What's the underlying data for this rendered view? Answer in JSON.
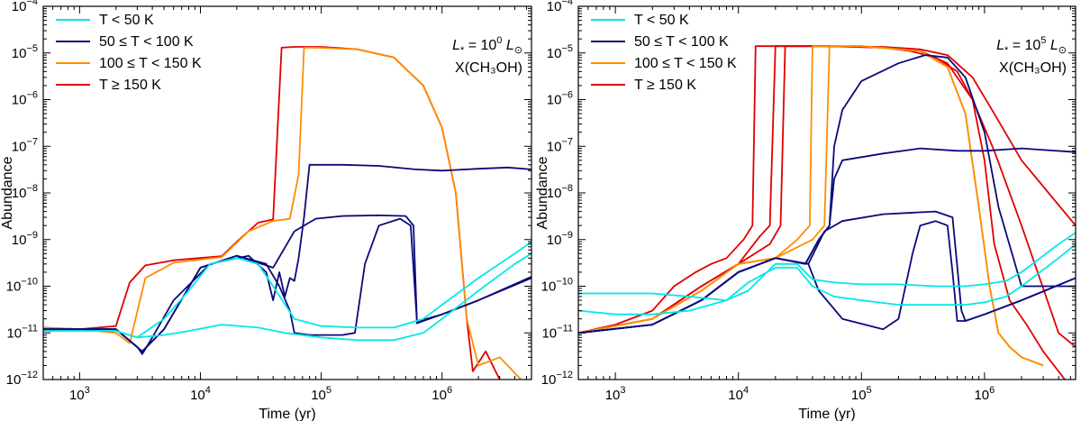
{
  "chart_data": [
    {
      "type": "line",
      "panel": "left",
      "xscale": "log",
      "yscale": "log",
      "xlim": [
        500,
        5500000
      ],
      "ylim": [
        1e-12,
        0.0001
      ],
      "xlabel": "Time (yr)",
      "ylabel": "Abundance",
      "xtick_labels": {
        "base": "10",
        "exps": [
          "3",
          "4",
          "5",
          "6"
        ]
      },
      "ytick_labels": {
        "base": "10",
        "exps": [
          "−12",
          "−11",
          "−10",
          "−9",
          "−8",
          "−7",
          "−6",
          "−5",
          "−4"
        ]
      },
      "annotation": {
        "lstar_lhs": "L",
        "lstar_sub": "*",
        "lstar_eq": " = 10",
        "lstar_exp": "0",
        "lstar_unit": "L",
        "lstar_unit_sub": "⊙",
        "species": "X(CH₃OH)"
      },
      "legend": {
        "location": "upper-left",
        "entries": [
          {
            "label": "T < 50 K",
            "color": "#00e8e8"
          },
          {
            "label": "50 ≤ T < 100 K",
            "color": "#0a0a7a"
          },
          {
            "label": "100 ≤ T < 150 K",
            "color": "#ff8c00"
          },
          {
            "label": "T ≥ 150 K",
            "color": "#e00000"
          }
        ]
      },
      "series": [
        {
          "name": "T ≥ 150 K",
          "color": "#e00000",
          "x": [
            500,
            1000,
            2000,
            2600,
            3500,
            6000,
            15000,
            20000,
            30000,
            40000,
            47000,
            60000,
            100000,
            200000,
            400000,
            700000,
            1000000,
            1300000,
            1600000,
            1800000,
            2300000,
            3000000
          ],
          "y": [
            1.3e-11,
            1.2e-11,
            1.4e-11,
            1.2e-10,
            2.8e-10,
            3.6e-10,
            4.4e-10,
            9e-10,
            2.3e-09,
            2.7e-09,
            1.3e-05,
            1.35e-05,
            1.35e-05,
            1.2e-05,
            8e-06,
            2e-06,
            2.5e-07,
            1e-08,
            2e-11,
            1.5e-12,
            4e-12,
            1e-12
          ]
        },
        {
          "name": "100 ≤ T < 150 K",
          "color": "#ff8c00",
          "x": [
            500,
            1000,
            2000,
            2600,
            3500,
            6000,
            15000,
            25000,
            40000,
            55000,
            65000,
            72000,
            90000,
            200000,
            400000,
            700000,
            1000000,
            1300000,
            1600000,
            2000000,
            3000000,
            4500000
          ],
          "y": [
            1.3e-11,
            1.2e-11,
            1e-11,
            6e-12,
            1.5e-10,
            3.2e-10,
            4.2e-10,
            1.5e-09,
            2.5e-09,
            2.8e-09,
            2.5e-08,
            1.3e-05,
            1.3e-05,
            1.2e-05,
            8e-06,
            2e-06,
            2.5e-07,
            1e-08,
            2e-11,
            2e-12,
            3e-12,
            1e-12
          ]
        },
        {
          "name": "50 ≤ T < 100 K",
          "color": "#0a0a7a",
          "x": [
            500,
            2000,
            3000,
            3300,
            4000,
            6000,
            12000,
            25000,
            35000,
            40000,
            45000,
            50000,
            55000,
            60000,
            65000,
            72000,
            80000,
            150000,
            300000,
            600000,
            1000000,
            2000000,
            3500000,
            5500000
          ],
          "y": [
            1.2e-11,
            1.2e-11,
            5e-12,
            3.5e-12,
            8e-12,
            5e-11,
            3e-10,
            4.5e-10,
            2e-10,
            5e-11,
            2e-10,
            6e-11,
            1.5e-10,
            1.3e-10,
            4e-10,
            3e-09,
            4e-08,
            4e-08,
            3.8e-08,
            3.2e-08,
            3e-08,
            3.3e-08,
            3.5e-08,
            3.2e-08
          ]
        },
        {
          "name": "50 ≤ T < 100 K",
          "color": "#0a0a7a",
          "x": [
            500,
            2000,
            3300,
            5000,
            10000,
            20000,
            40000,
            60000,
            90000,
            150000,
            300000,
            500000,
            580000,
            620000,
            700000,
            1000000,
            2000000,
            5500000
          ],
          "y": [
            1.2e-11,
            1.2e-11,
            4e-12,
            1.2e-11,
            2.5e-10,
            4.5e-10,
            2.5e-10,
            1.5e-09,
            2.8e-09,
            3.2e-09,
            3.3e-09,
            3.2e-09,
            2e-09,
            1.6e-11,
            1.8e-11,
            2.5e-11,
            5e-11,
            1.5e-10
          ]
        },
        {
          "name": "50 ≤ T < 100 K",
          "color": "#0a0a7a",
          "x": [
            500,
            2000,
            3300,
            5000,
            10000,
            20000,
            35000,
            45000,
            55000,
            60000,
            80000,
            150000,
            190000,
            230000,
            300000,
            450000,
            550000,
            620000,
            700000,
            1000000,
            2000000,
            5500000
          ],
          "y": [
            1.2e-11,
            1.2e-11,
            4e-12,
            1.2e-11,
            2.5e-10,
            4.5e-10,
            3e-10,
            1e-10,
            3e-11,
            1e-11,
            9e-12,
            9e-12,
            1e-11,
            3e-10,
            2e-09,
            2.8e-09,
            2e-09,
            1.7e-11,
            1.9e-11,
            2.5e-11,
            5e-11,
            1.6e-10
          ]
        },
        {
          "name": "T < 50 K",
          "color": "#00e8e8",
          "x": [
            500,
            2000,
            3000,
            5000,
            8000,
            15000,
            30000,
            50000,
            100000,
            200000,
            400000,
            700000,
            1000000,
            2000000,
            4000000,
            5500000
          ],
          "y": [
            1.1e-11,
            1.1e-11,
            8e-12,
            9e-12,
            1.1e-11,
            1.5e-11,
            1.3e-11,
            1e-11,
            8e-12,
            7e-12,
            7e-12,
            1e-11,
            2e-11,
            8e-11,
            3e-10,
            5e-10
          ]
        },
        {
          "name": "T < 50 K",
          "color": "#00e8e8",
          "x": [
            500,
            2000,
            3000,
            5000,
            8000,
            12000,
            20000,
            30000,
            40000,
            60000,
            100000,
            200000,
            400000,
            700000,
            1000000,
            2000000,
            4000000,
            5500000
          ],
          "y": [
            1.1e-11,
            1.1e-11,
            8e-12,
            2e-11,
            8e-11,
            3e-10,
            4e-10,
            3e-10,
            1e-10,
            2e-11,
            1.4e-11,
            1.3e-11,
            1.3e-11,
            2e-11,
            4e-11,
            1.5e-10,
            5e-10,
            9e-10
          ]
        }
      ]
    },
    {
      "type": "line",
      "panel": "right",
      "xscale": "log",
      "yscale": "log",
      "xlim": [
        500,
        5500000
      ],
      "ylim": [
        1e-12,
        0.0001
      ],
      "xlabel": "Time (yr)",
      "ylabel": "Abundance",
      "xtick_labels": {
        "base": "10",
        "exps": [
          "3",
          "4",
          "5",
          "6"
        ]
      },
      "ytick_labels": {
        "base": "10",
        "exps": [
          "−12",
          "−11",
          "−10",
          "−9",
          "−8",
          "−7",
          "−6",
          "−5",
          "−4"
        ]
      },
      "annotation": {
        "lstar_lhs": "L",
        "lstar_sub": "*",
        "lstar_eq": " = 10",
        "lstar_exp": "5",
        "lstar_unit": "L",
        "lstar_unit_sub": "⊙",
        "species": "X(CH₃OH)"
      },
      "legend": {
        "location": "upper-left",
        "entries": [
          {
            "label": "T < 50 K",
            "color": "#00e8e8"
          },
          {
            "label": "50 ≤ T < 100 K",
            "color": "#0a0a7a"
          },
          {
            "label": "100 ≤ T < 150 K",
            "color": "#ff8c00"
          },
          {
            "label": "T ≥ 150 K",
            "color": "#e00000"
          }
        ]
      },
      "series": [
        {
          "name": "T ≥ 150 K",
          "color": "#e00000",
          "x": [
            500,
            1000,
            2000,
            3000,
            4500,
            6000,
            8000,
            11000,
            13000,
            13800,
            20000,
            60000,
            150000,
            250000,
            400000,
            600000,
            800000,
            1000000,
            1200000,
            1600000,
            2200000,
            3000000,
            4500000
          ],
          "y": [
            1e-11,
            1.5e-11,
            3e-11,
            1e-10,
            2e-10,
            3e-10,
            4e-10,
            1e-09,
            2e-09,
            1.4e-05,
            1.4e-05,
            1.4e-05,
            1.3e-05,
            1.1e-05,
            8e-06,
            4e-06,
            1e-06,
            5e-08,
            8e-10,
            5e-11,
            1.5e-11,
            4e-12,
            1e-12
          ]
        },
        {
          "name": "T ≥ 150 K",
          "color": "#e00000",
          "x": [
            500,
            2000,
            5000,
            10000,
            15000,
            18000,
            20000,
            50000,
            150000,
            300000,
            500000,
            800000,
            1200000,
            2000000,
            5500000
          ],
          "y": [
            1e-11,
            2e-11,
            1e-10,
            3e-10,
            1.2e-09,
            2e-09,
            1.4e-05,
            1.4e-05,
            1.35e-05,
            1.2e-05,
            9e-06,
            3e-06,
            5e-07,
            5e-08,
            2e-09
          ]
        },
        {
          "name": "T ≥ 150 K",
          "color": "#e00000",
          "x": [
            500,
            2000,
            5000,
            10000,
            18000,
            22000,
            24000,
            50000,
            150000,
            300000,
            500000,
            800000,
            1200000,
            2000000,
            4000000,
            5500000
          ],
          "y": [
            1e-11,
            2e-11,
            1e-10,
            3e-10,
            8e-10,
            2e-09,
            1.4e-05,
            1.4e-05,
            1.3e-05,
            1.1e-05,
            6e-06,
            1e-06,
            8e-08,
            2e-09,
            1e-11,
            5e-12
          ]
        },
        {
          "name": "100 ≤ T < 150 K",
          "color": "#ff8c00",
          "x": [
            500,
            2000,
            5000,
            10000,
            20000,
            30000,
            38000,
            40000,
            100000,
            300000,
            500000,
            700000,
            900000,
            1100000,
            1300000,
            1600000,
            2000000,
            3000000
          ],
          "y": [
            1e-11,
            2e-11,
            8e-11,
            3e-10,
            4e-10,
            1e-09,
            2e-09,
            1.4e-05,
            1.4e-05,
            1.1e-05,
            5e-06,
            5e-07,
            5e-09,
            1e-10,
            1e-11,
            5e-12,
            3e-12,
            2e-12
          ]
        },
        {
          "name": "100 ≤ T < 150 K",
          "color": "#ff8c00",
          "x": [
            500,
            2000,
            5000,
            10000,
            20000,
            40000,
            50000,
            55000,
            100000,
            300000,
            500000,
            700000,
            900000,
            1100000,
            1300000,
            1600000,
            2000000,
            3000000
          ],
          "y": [
            1e-11,
            2e-11,
            8e-11,
            3e-10,
            4e-10,
            1e-09,
            2e-09,
            1.4e-05,
            1.4e-05,
            1.1e-05,
            5e-06,
            5e-07,
            5e-09,
            1e-10,
            1e-11,
            5e-12,
            3e-12,
            2e-12
          ]
        },
        {
          "name": "50 ≤ T < 100 K",
          "color": "#0a0a7a",
          "x": [
            500,
            2000,
            5000,
            10000,
            20000,
            35000,
            45000,
            55000,
            60000,
            70000,
            100000,
            200000,
            330000,
            500000,
            700000,
            1000000,
            1300000,
            2000000,
            5500000
          ],
          "y": [
            1e-11,
            1.5e-11,
            5e-11,
            2e-10,
            4e-10,
            3e-10,
            1e-09,
            2e-09,
            1e-07,
            6e-07,
            2.5e-06,
            6e-06,
            9e-06,
            8e-06,
            3e-06,
            2e-07,
            5e-09,
            1e-10,
            1e-10
          ]
        },
        {
          "name": "50 ≤ T < 100 K",
          "color": "#0a0a7a",
          "x": [
            500,
            2000,
            5000,
            10000,
            20000,
            35000,
            45000,
            55000,
            60000,
            70000,
            150000,
            300000,
            600000,
            1000000,
            2000000,
            5500000
          ],
          "y": [
            1e-11,
            1.5e-11,
            5e-11,
            2e-10,
            4e-10,
            3e-10,
            1e-09,
            2e-09,
            2e-08,
            5e-08,
            7e-08,
            9e-08,
            8e-08,
            8e-08,
            9e-08,
            7.5e-08
          ]
        },
        {
          "name": "50 ≤ T < 100 K",
          "color": "#0a0a7a",
          "x": [
            500,
            2000,
            5000,
            10000,
            20000,
            37000,
            50000,
            70000,
            150000,
            400000,
            550000,
            650000,
            700000,
            1000000,
            2000000,
            5500000
          ],
          "y": [
            1e-11,
            1.5e-11,
            5e-11,
            2e-10,
            4e-10,
            3e-10,
            1.5e-09,
            2.5e-09,
            3.5e-09,
            4e-09,
            3e-09,
            3e-11,
            1.8e-11,
            2.5e-11,
            5e-11,
            1.5e-10
          ]
        },
        {
          "name": "50 ≤ T < 100 K",
          "color": "#0a0a7a",
          "x": [
            500,
            2000,
            5000,
            10000,
            20000,
            37000,
            45000,
            70000,
            150000,
            200000,
            260000,
            300000,
            400000,
            500000,
            550000,
            600000,
            700000,
            1000000,
            2000000,
            5500000
          ],
          "y": [
            1e-11,
            1.5e-11,
            5e-11,
            2e-10,
            4e-10,
            3e-10,
            8e-11,
            2e-11,
            1.2e-11,
            2e-11,
            5e-10,
            2e-09,
            2.5e-09,
            2e-09,
            2e-10,
            1.8e-11,
            1.8e-11,
            2.5e-11,
            5e-11,
            1.5e-10
          ]
        },
        {
          "name": "T < 50 K",
          "color": "#00e8e8",
          "x": [
            500,
            1000,
            2000,
            4000,
            8000,
            12000,
            20000,
            30000,
            40000,
            60000,
            100000,
            200000,
            400000,
            700000,
            1000000,
            1500000,
            2000000,
            4000000,
            5500000
          ],
          "y": [
            7e-11,
            7e-11,
            7e-11,
            6e-11,
            5e-11,
            8e-11,
            3e-10,
            3e-10,
            1.4e-10,
            1.2e-10,
            1.1e-10,
            1.1e-10,
            1e-10,
            1e-10,
            1.1e-10,
            1.3e-10,
            2e-10,
            8e-10,
            1.4e-09
          ]
        },
        {
          "name": "T < 50 K",
          "color": "#00e8e8",
          "x": [
            500,
            1000,
            2000,
            4000,
            8000,
            12000,
            20000,
            30000,
            40000,
            60000,
            100000,
            200000,
            400000,
            700000,
            1000000,
            1500000,
            2000000,
            4000000,
            5500000
          ],
          "y": [
            3e-11,
            2.5e-11,
            2.5e-11,
            3e-11,
            5e-11,
            1.2e-10,
            2.5e-10,
            2.5e-10,
            1e-10,
            6e-11,
            5e-11,
            4e-11,
            4e-11,
            4e-11,
            4.5e-11,
            6e-11,
            1e-10,
            4e-10,
            8e-10
          ]
        }
      ]
    }
  ]
}
